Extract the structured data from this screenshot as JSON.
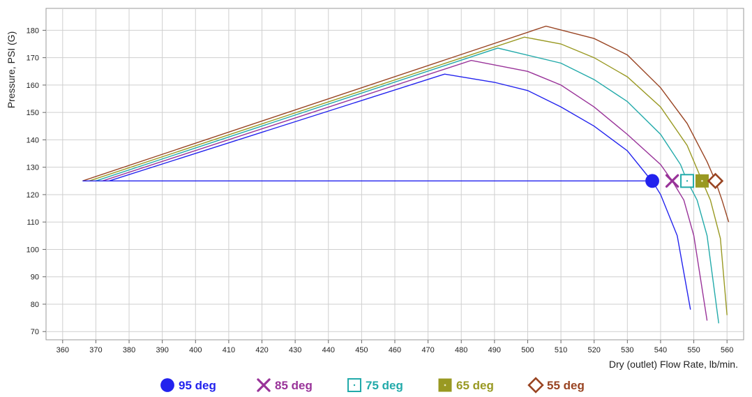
{
  "chart_data": {
    "type": "line",
    "xlabel": "Dry (outlet) Flow Rate, lb/min.",
    "ylabel": "Pressure, PSI (G)",
    "xlim": [
      355,
      565
    ],
    "ylim": [
      67,
      188
    ],
    "x_ticks": [
      360,
      370,
      380,
      390,
      400,
      410,
      420,
      430,
      440,
      450,
      460,
      470,
      480,
      490,
      500,
      510,
      520,
      530,
      540,
      550,
      560
    ],
    "y_ticks": [
      70,
      80,
      90,
      100,
      110,
      120,
      130,
      140,
      150,
      160,
      170,
      180
    ],
    "grid": true,
    "legend_position": "bottom",
    "operating_pressure": 125,
    "series": [
      {
        "name": "95 deg",
        "color": "#2222ee",
        "marker": "circle",
        "marker_point": [
          537.5,
          125
        ],
        "points": [
          [
            374,
            125
          ],
          [
            475,
            164
          ],
          [
            490,
            161
          ],
          [
            500,
            158
          ],
          [
            510,
            152
          ],
          [
            520,
            145
          ],
          [
            530,
            136
          ],
          [
            536,
            127
          ],
          [
            537.5,
            125
          ],
          [
            540,
            120
          ],
          [
            545,
            105
          ],
          [
            549,
            78
          ]
        ]
      },
      {
        "name": "85 deg",
        "color": "#993399",
        "marker": "x",
        "marker_point": [
          543.5,
          125
        ],
        "points": [
          [
            372,
            125
          ],
          [
            483,
            169
          ],
          [
            500,
            165
          ],
          [
            510,
            160
          ],
          [
            520,
            152
          ],
          [
            530,
            142
          ],
          [
            540,
            131
          ],
          [
            543.5,
            125
          ],
          [
            547,
            118
          ],
          [
            550,
            105
          ],
          [
            554,
            74
          ]
        ]
      },
      {
        "name": "75 deg",
        "color": "#22aaaa",
        "marker": "square-dot",
        "marker_point": [
          548,
          125
        ],
        "points": [
          [
            370,
            125
          ],
          [
            491,
            173.5
          ],
          [
            510,
            168
          ],
          [
            520,
            162
          ],
          [
            530,
            154
          ],
          [
            540,
            142
          ],
          [
            546,
            131
          ],
          [
            548,
            125
          ],
          [
            551,
            118
          ],
          [
            554,
            105
          ],
          [
            557.5,
            73
          ]
        ]
      },
      {
        "name": "65 deg",
        "color": "#999922",
        "marker": "filled-square",
        "marker_point": [
          552.5,
          125
        ],
        "points": [
          [
            368,
            125
          ],
          [
            499,
            177.5
          ],
          [
            510,
            175
          ],
          [
            520,
            170
          ],
          [
            530,
            163
          ],
          [
            540,
            152
          ],
          [
            548,
            138
          ],
          [
            552.5,
            125
          ],
          [
            555,
            118
          ],
          [
            558,
            104
          ],
          [
            560,
            76
          ]
        ]
      },
      {
        "name": "55 deg",
        "color": "#994422",
        "marker": "diamond",
        "marker_point": [
          556.5,
          125
        ],
        "points": [
          [
            366,
            125
          ],
          [
            505.5,
            181.5
          ],
          [
            520,
            177
          ],
          [
            530,
            171
          ],
          [
            540,
            159
          ],
          [
            548,
            146
          ],
          [
            554,
            132
          ],
          [
            556.5,
            125
          ],
          [
            558.5,
            118
          ],
          [
            560.5,
            110
          ]
        ]
      }
    ]
  }
}
